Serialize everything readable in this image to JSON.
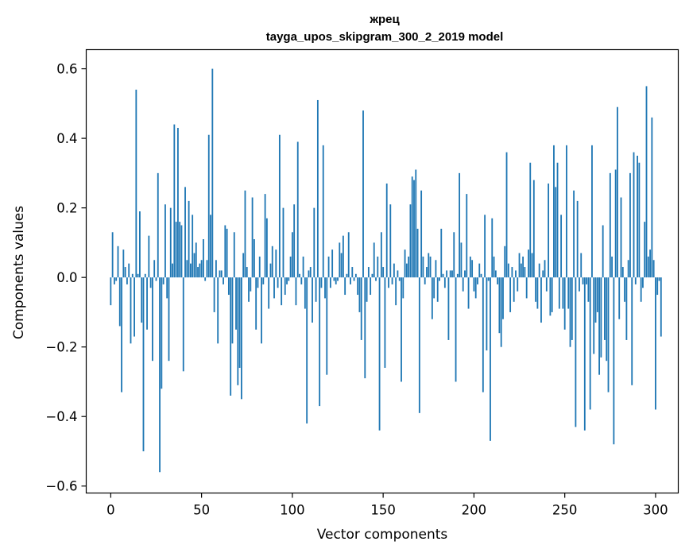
{
  "chart_data": {
    "type": "bar",
    "title": "жрец",
    "subtitle": "tayga_upos_skipgram_300_2_2019 model",
    "xlabel": "Vector components",
    "ylabel": "Components values",
    "xlim": [
      -13.5,
      312.5
    ],
    "ylim": [
      -0.62,
      0.655
    ],
    "xticks": [
      0,
      50,
      100,
      150,
      200,
      250,
      300
    ],
    "xtick_labels": [
      "0",
      "50",
      "100",
      "150",
      "200",
      "250",
      "300"
    ],
    "yticks": [
      -0.6,
      -0.4,
      -0.2,
      0.0,
      0.2,
      0.4,
      0.6
    ],
    "ytick_labels": [
      "−0.6",
      "−0.4",
      "−0.2",
      "0.0",
      "0.2",
      "0.4",
      "0.6"
    ],
    "bar_color": "#1f77b4",
    "bar_width": 0.8,
    "values": [
      -0.08,
      0.13,
      -0.02,
      -0.01,
      0.09,
      -0.14,
      -0.33,
      0.08,
      0.03,
      -0.02,
      0.04,
      -0.19,
      0.01,
      -0.17,
      0.54,
      0.01,
      0.19,
      -0.13,
      -0.5,
      0.01,
      -0.15,
      0.12,
      -0.03,
      -0.24,
      0.05,
      -0.01,
      0.3,
      -0.56,
      -0.32,
      -0.02,
      0.21,
      -0.06,
      -0.24,
      0.2,
      0.04,
      0.44,
      0.16,
      0.43,
      0.16,
      0.15,
      -0.27,
      0.26,
      0.05,
      0.22,
      0.04,
      0.18,
      0.07,
      0.1,
      0.03,
      0.04,
      0.05,
      0.11,
      -0.01,
      0.05,
      0.41,
      0.18,
      0.6,
      -0.1,
      0.05,
      -0.19,
      0.02,
      0.02,
      -0.02,
      0.15,
      0.14,
      -0.05,
      -0.34,
      -0.19,
      0.13,
      -0.15,
      -0.31,
      -0.26,
      -0.35,
      0.07,
      0.25,
      0.03,
      -0.07,
      -0.04,
      0.23,
      0.11,
      -0.15,
      -0.03,
      0.06,
      -0.19,
      -0.02,
      0.24,
      0.17,
      -0.09,
      0.04,
      0.09,
      -0.06,
      0.08,
      -0.03,
      0.41,
      -0.08,
      0.2,
      -0.05,
      -0.02,
      -0.01,
      0.06,
      0.13,
      0.21,
      -0.08,
      0.39,
      0.01,
      -0.02,
      0.06,
      -0.09,
      -0.42,
      0.02,
      0.03,
      -0.13,
      0.2,
      -0.07,
      0.51,
      -0.37,
      -0.03,
      0.38,
      -0.06,
      -0.28,
      0.06,
      -0.03,
      0.08,
      -0.01,
      -0.02,
      -0.01,
      0.1,
      0.07,
      0.12,
      -0.05,
      0.01,
      0.13,
      -0.02,
      0.03,
      -0.01,
      0.01,
      -0.05,
      -0.1,
      -0.18,
      0.48,
      -0.29,
      -0.07,
      0.03,
      -0.05,
      0.01,
      0.1,
      -0.01,
      0.06,
      -0.44,
      0.13,
      0.03,
      -0.26,
      0.27,
      -0.03,
      0.21,
      -0.02,
      0.04,
      -0.08,
      0.02,
      -0.01,
      -0.3,
      -0.06,
      0.08,
      0.04,
      0.06,
      0.21,
      0.29,
      0.28,
      0.31,
      0.14,
      -0.39,
      0.25,
      0.06,
      -0.02,
      0.03,
      0.07,
      0.06,
      -0.12,
      -0.06,
      0.05,
      -0.07,
      -0.01,
      0.14,
      0.01,
      -0.03,
      0.02,
      -0.18,
      0.02,
      0.02,
      0.13,
      -0.3,
      0.01,
      0.3,
      0.1,
      -0.04,
      0.02,
      0.24,
      -0.09,
      0.06,
      0.05,
      -0.04,
      -0.06,
      -0.02,
      0.04,
      0.01,
      -0.33,
      0.18,
      -0.21,
      -0.01,
      -0.47,
      0.17,
      0.06,
      0.02,
      -0.02,
      -0.16,
      -0.2,
      -0.12,
      0.09,
      0.36,
      0.04,
      -0.1,
      0.03,
      -0.07,
      0.02,
      -0.04,
      0.07,
      0.04,
      0.06,
      0.03,
      -0.06,
      0.08,
      0.33,
      0.07,
      0.28,
      -0.07,
      -0.09,
      0.04,
      -0.13,
      0.02,
      0.05,
      -0.04,
      0.27,
      -0.11,
      -0.1,
      0.38,
      0.26,
      0.33,
      -0.09,
      0.18,
      -0.09,
      -0.15,
      0.38,
      -0.09,
      -0.2,
      -0.18,
      0.25,
      -0.43,
      0.22,
      -0.04,
      0.07,
      -0.02,
      -0.44,
      -0.02,
      -0.07,
      -0.38,
      0.38,
      -0.22,
      -0.13,
      -0.1,
      -0.28,
      -0.23,
      0.15,
      -0.18,
      -0.24,
      -0.33,
      0.3,
      0.06,
      -0.48,
      0.31,
      0.49,
      -0.12,
      0.23,
      0.03,
      -0.07,
      -0.18,
      0.05,
      0.3,
      -0.31,
      0.36,
      -0.02,
      0.35,
      0.33,
      -0.07,
      -0.03,
      0.16,
      0.55,
      0.06,
      0.08,
      0.46,
      0.05,
      -0.38,
      -0.05,
      -0.01,
      -0.17
    ]
  }
}
